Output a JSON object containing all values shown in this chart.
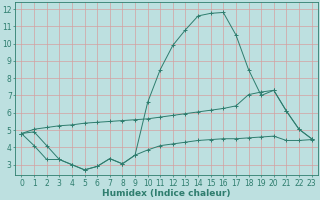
{
  "xlabel": "Humidex (Indice chaleur)",
  "x": [
    0,
    1,
    2,
    3,
    4,
    5,
    6,
    7,
    8,
    9,
    10,
    11,
    12,
    13,
    14,
    15,
    16,
    17,
    18,
    19,
    20,
    21,
    22,
    23
  ],
  "line_bottom": [
    4.8,
    4.1,
    3.3,
    3.3,
    3.0,
    2.7,
    2.9,
    3.35,
    3.05,
    3.55,
    3.85,
    4.1,
    4.2,
    4.3,
    4.4,
    4.45,
    4.5,
    4.5,
    4.55,
    4.6,
    4.65,
    4.4,
    4.4,
    4.45
  ],
  "line_mid": [
    4.8,
    5.05,
    5.15,
    5.25,
    5.3,
    5.4,
    5.45,
    5.5,
    5.55,
    5.6,
    5.65,
    5.75,
    5.85,
    5.95,
    6.05,
    6.15,
    6.25,
    6.4,
    7.05,
    7.2,
    7.3,
    6.1,
    5.05,
    4.5
  ],
  "line_top": [
    4.8,
    4.9,
    4.1,
    3.3,
    3.0,
    2.7,
    2.9,
    3.35,
    3.05,
    3.55,
    6.6,
    8.5,
    9.9,
    10.8,
    11.6,
    11.75,
    11.8,
    10.5,
    8.5,
    7.0,
    7.3,
    6.1,
    5.05,
    4.5
  ],
  "line_color": "#2e7d6e",
  "bg_color": "#bde0e0",
  "grid_color": "#d4a0a0",
  "ylim": [
    2.4,
    12.4
  ],
  "yticks": [
    3,
    4,
    5,
    6,
    7,
    8,
    9,
    10,
    11,
    12
  ],
  "xlim": [
    -0.5,
    23.5
  ],
  "tick_fontsize": 5.5,
  "xlabel_fontsize": 6.5
}
